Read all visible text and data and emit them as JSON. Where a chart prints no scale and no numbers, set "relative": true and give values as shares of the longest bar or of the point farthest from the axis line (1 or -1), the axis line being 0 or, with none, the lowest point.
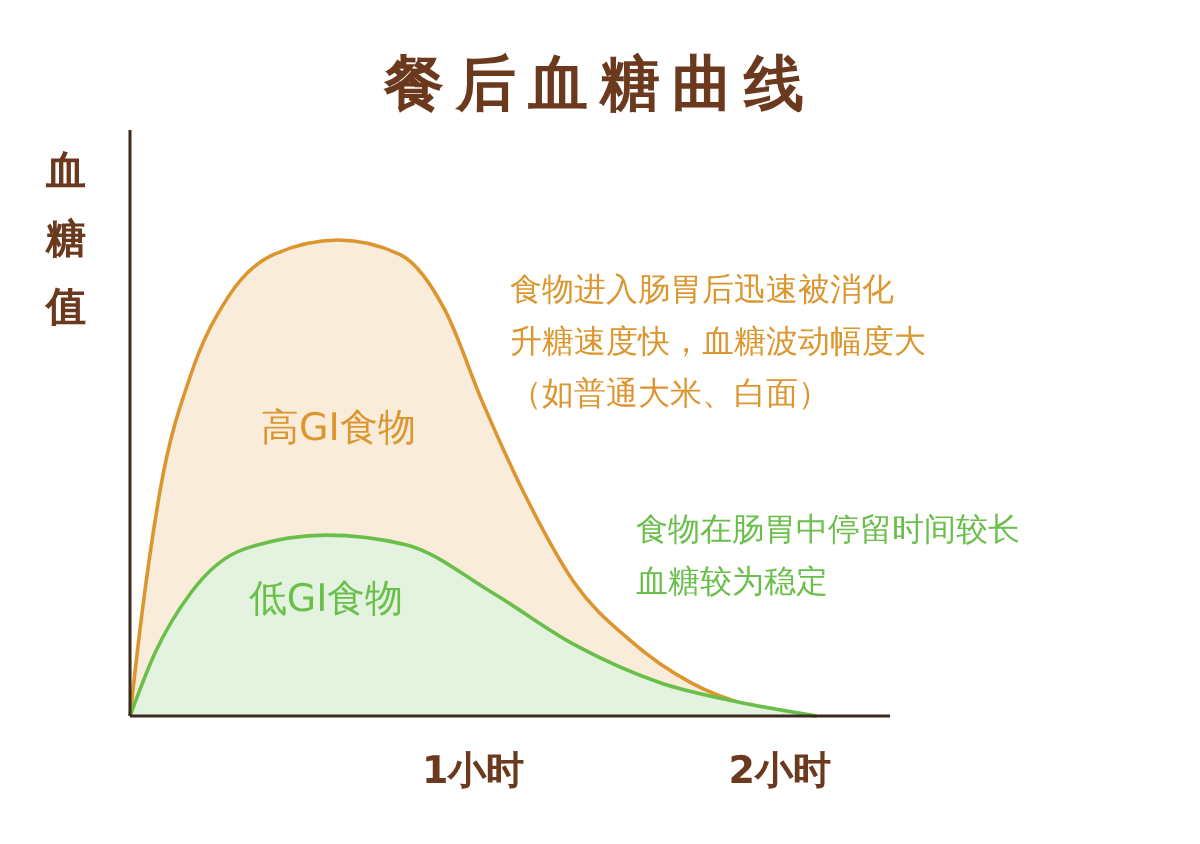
{
  "chart_data": {
    "type": "area",
    "title": "餐后血糖曲线",
    "ylabel": "血糖值",
    "relative": true,
    "xlim": [
      -0.12,
      2.36
    ],
    "xticks": [
      {
        "value": 1,
        "label": "1小时"
      },
      {
        "value": 2,
        "label": "2小时"
      }
    ],
    "series": [
      {
        "name": "高GI食物",
        "color": "#dc962f",
        "x": [
          -0.12,
          -0.08,
          -0.02,
          0.08,
          0.2,
          0.35,
          0.56,
          0.76,
          0.91,
          1.03,
          1.18,
          1.33,
          1.51,
          1.71,
          1.91,
          2.12
        ],
        "values": [
          0,
          0.22,
          0.48,
          0.72,
          0.88,
          0.97,
          1,
          0.97,
          0.85,
          0.66,
          0.45,
          0.28,
          0.16,
          0.07,
          0.02,
          0
        ]
      },
      {
        "name": "低GI食物",
        "color": "#6abf4b",
        "x": [
          -0.12,
          -0.04,
          0.08,
          0.25,
          0.52,
          0.78,
          1.06,
          1.33,
          1.61,
          1.86,
          2.12
        ],
        "values": [
          0,
          0.13,
          0.26,
          0.35,
          0.38,
          0.36,
          0.26,
          0.15,
          0.07,
          0.03,
          0
        ]
      }
    ],
    "annotations": [
      "食物进入肠胃后迅速被消化",
      "升糖速度快，血糖波动幅度大",
      "（如普通大米、白面）",
      "食物在肠胃中停留时间较长",
      "血糖较为稳定"
    ],
    "legend": false
  }
}
